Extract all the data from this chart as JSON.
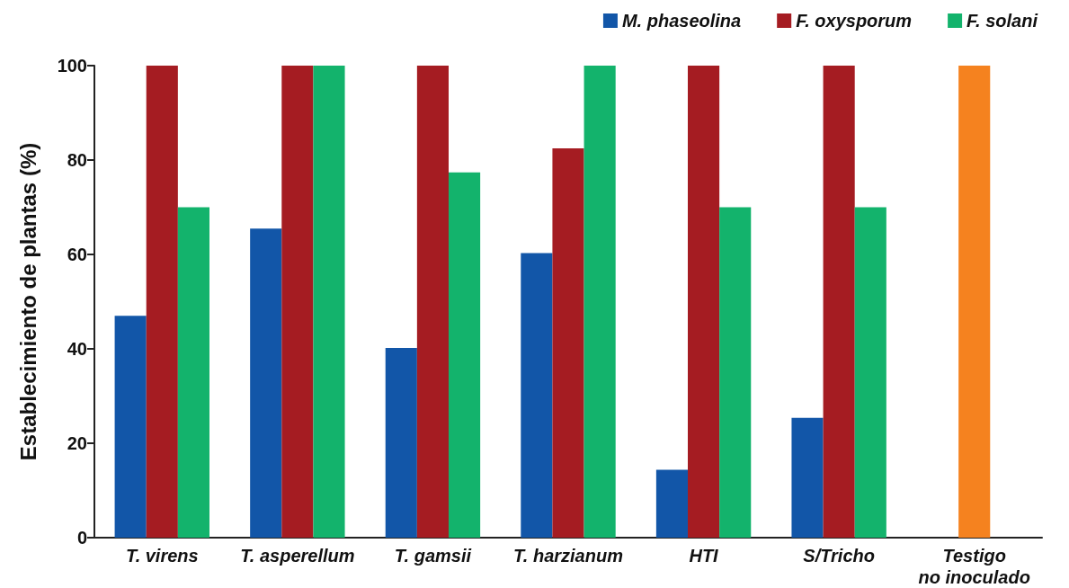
{
  "chart_data": {
    "type": "bar",
    "ylabel": "Establecimiento de plantas (%)",
    "categories": [
      "T. virens",
      "T. asperellum",
      "T. gamsii",
      "T. harzianum",
      "HTI",
      "S/Tricho",
      "Testigo\nno inoculado"
    ],
    "series": [
      {
        "name": "M. phaseolina",
        "color": "#1256a8",
        "values": [
          47,
          65.5,
          40.2,
          60.3,
          14.4,
          25.4,
          null
        ]
      },
      {
        "name": "F. oxysporum",
        "color": "#a51c22",
        "colors": [
          "#a51c22",
          "#a51c22",
          "#a51c22",
          "#a51c22",
          "#a51c22",
          "#a51c22",
          "#f5821f"
        ],
        "values": [
          100,
          100,
          100,
          82.5,
          100,
          100,
          100
        ]
      },
      {
        "name": "F. solani",
        "color": "#13b36c",
        "values": [
          70,
          100,
          77.4,
          100,
          70,
          70,
          null
        ]
      }
    ],
    "ylim": [
      0,
      100
    ],
    "yticks": [
      0,
      20,
      40,
      60,
      80,
      100
    ],
    "grid": false,
    "legend": "top right"
  }
}
